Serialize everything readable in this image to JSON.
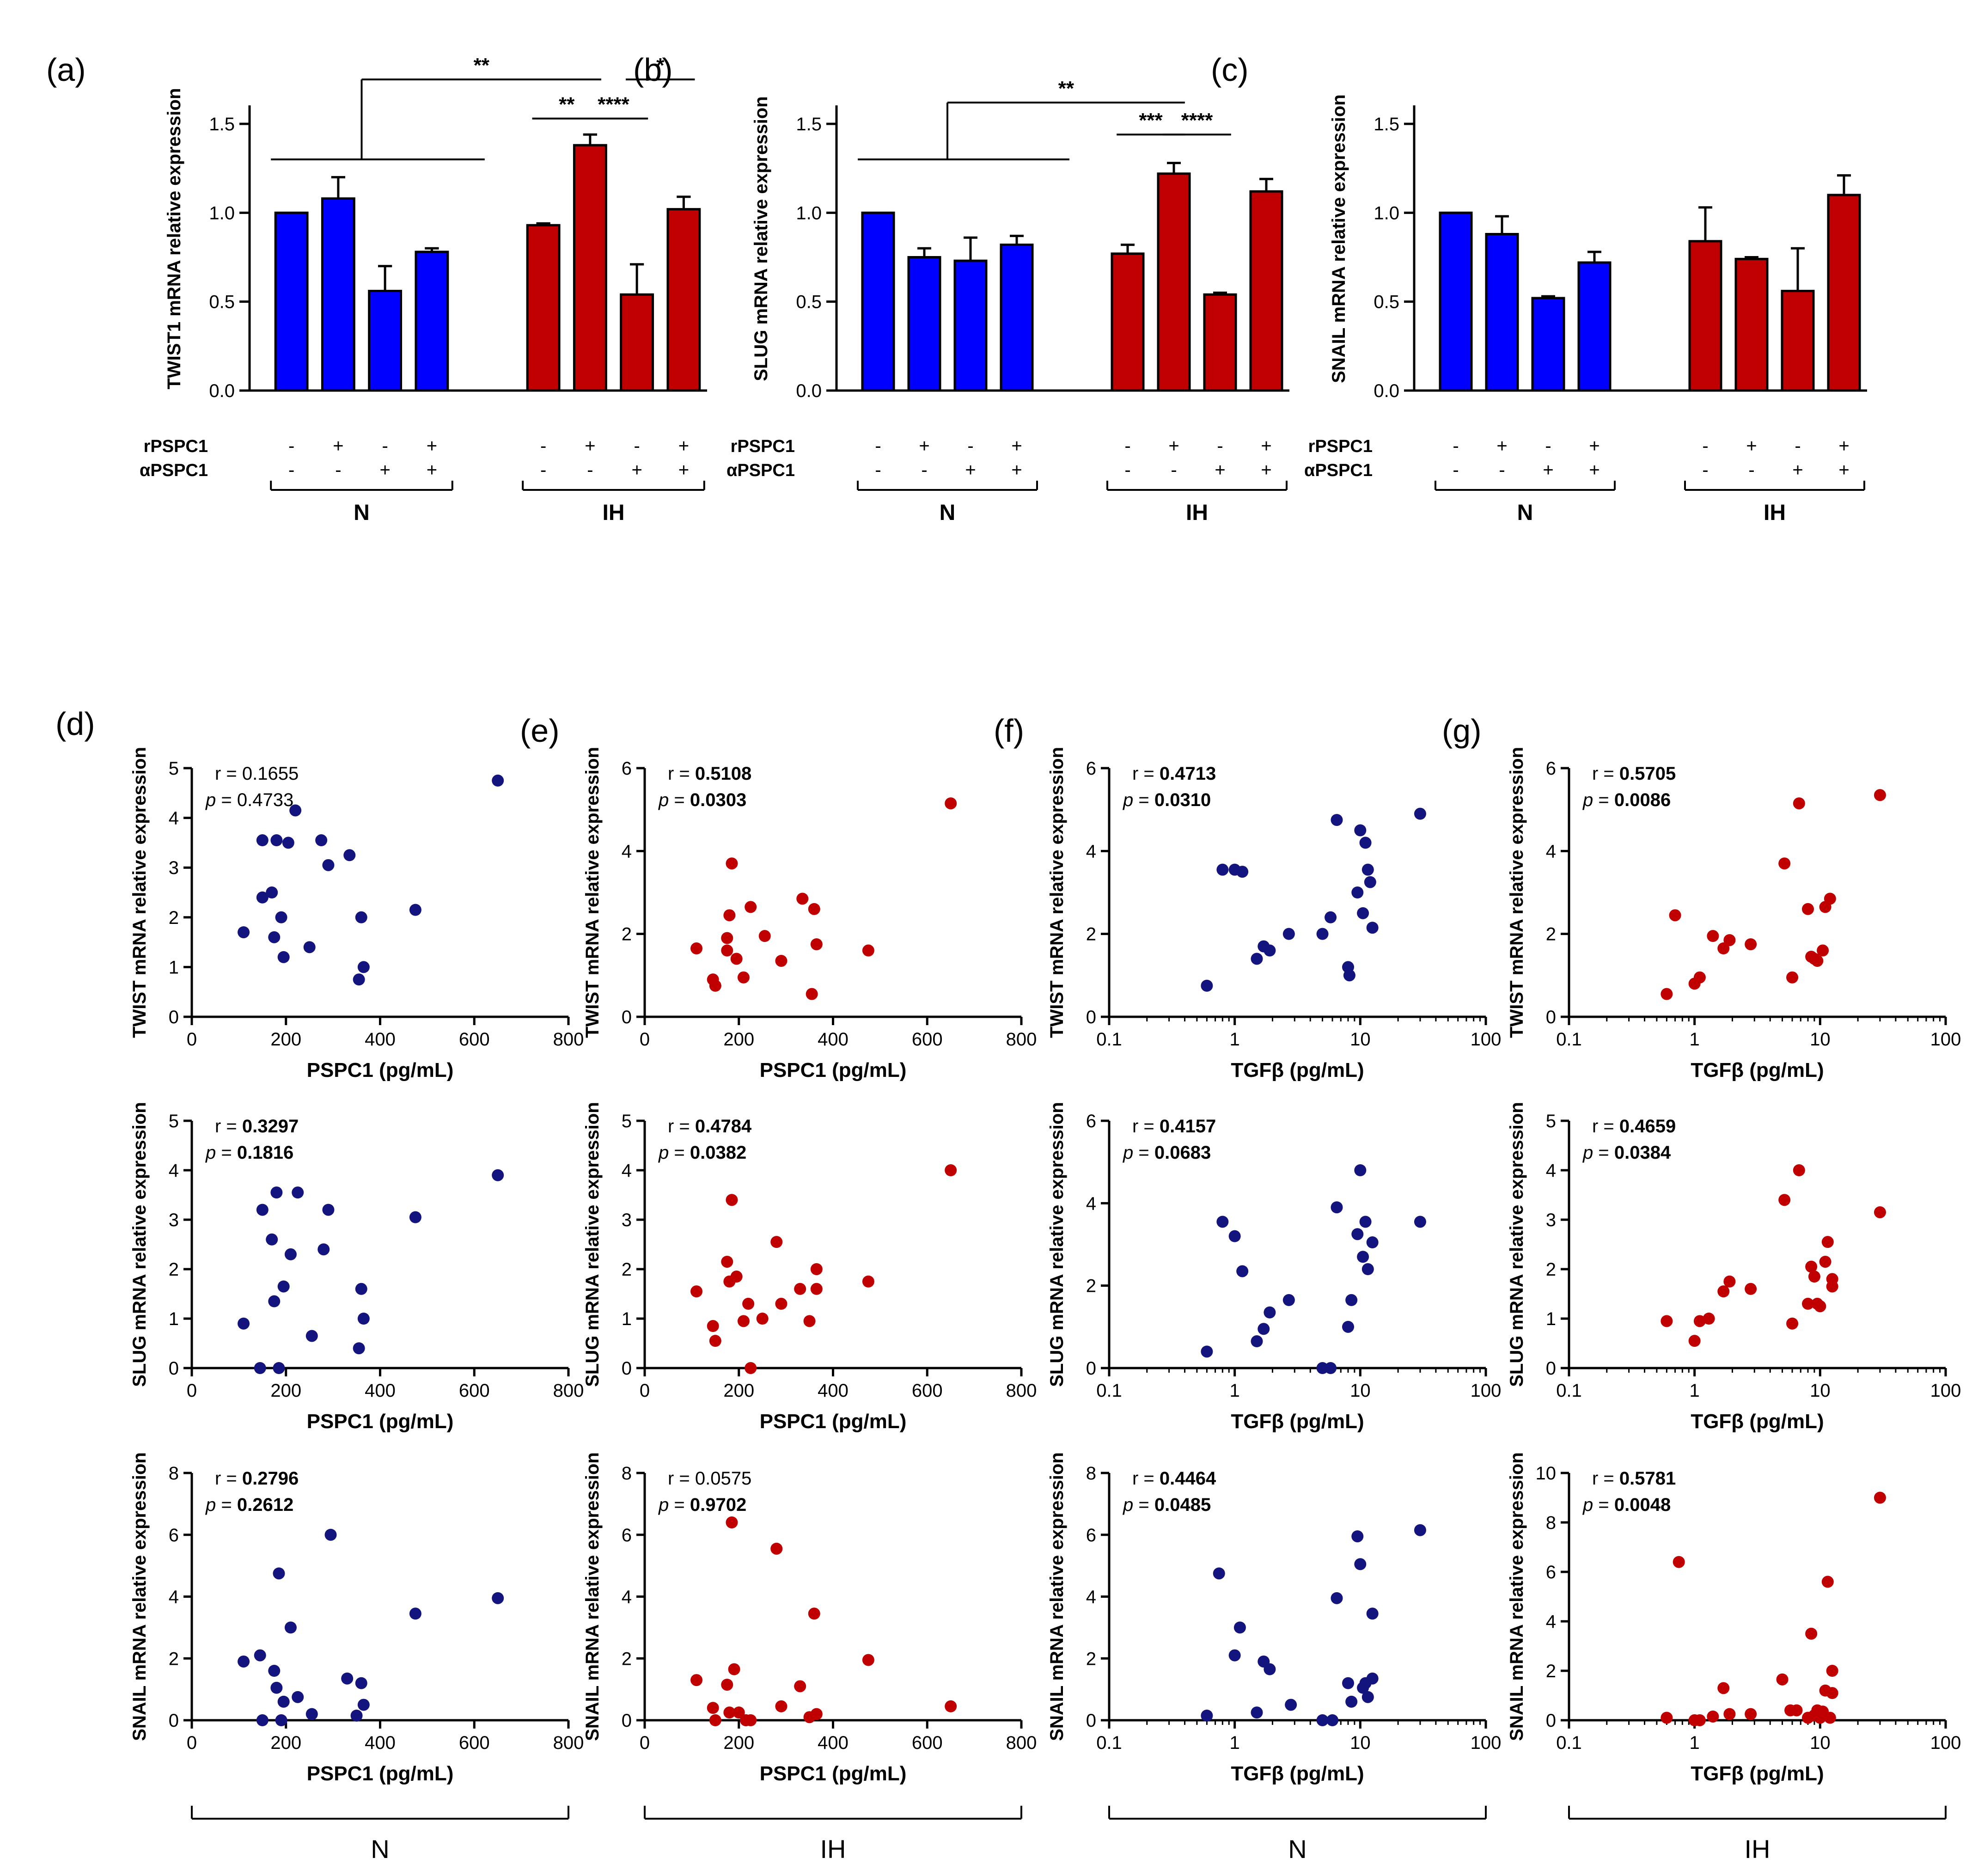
{
  "colors": {
    "N": "#0000ff",
    "IH": "#c00000",
    "N_dot": "#14147f",
    "IH_dot": "#c00000"
  },
  "bar_panels": [
    {
      "id": "a",
      "label": "(a)",
      "ylabel": "TWIST1 mRNA relative expression",
      "ylim": [
        0,
        1.5
      ],
      "yticks": [
        "0.0",
        "0.5",
        "1.0",
        "1.5"
      ],
      "row_labels": [
        "rPSPC1",
        "αPSPC1"
      ],
      "rPSPC1": [
        "-",
        "+",
        "-",
        "+",
        "-",
        "+",
        "-",
        "+"
      ],
      "aPSPC1": [
        "-",
        "-",
        "+",
        "+",
        "-",
        "-",
        "+",
        "+"
      ],
      "groups": [
        "N",
        "IH"
      ],
      "values": [
        1.0,
        1.08,
        0.56,
        0.78,
        0.93,
        1.38,
        0.54,
        1.02
      ],
      "errors": [
        0.0,
        0.12,
        0.14,
        0.02,
        0.01,
        0.06,
        0.17,
        0.07
      ],
      "significance": [
        {
          "label": "**",
          "type": "group",
          "from": 0,
          "to": 5,
          "level": 1.75
        },
        {
          "label": "**",
          "type": "pair",
          "from": 4,
          "to": 5,
          "level": 1.53
        },
        {
          "label": "****",
          "type": "pair",
          "from": 5,
          "to": 6,
          "level": 1.53
        },
        {
          "label": "*",
          "type": "pair",
          "from": 6,
          "to": 7,
          "level": 1.75
        }
      ]
    },
    {
      "id": "b",
      "label": "(b)",
      "ylabel": "SLUG mRNA relative expression",
      "ylim": [
        0,
        1.5
      ],
      "yticks": [
        "0.0",
        "0.5",
        "1.0",
        "1.5"
      ],
      "row_labels": [
        "rPSPC1",
        "αPSPC1"
      ],
      "rPSPC1": [
        "-",
        "+",
        "-",
        "+",
        "-",
        "+",
        "-",
        "+"
      ],
      "aPSPC1": [
        "-",
        "-",
        "+",
        "+",
        "-",
        "-",
        "+",
        "+"
      ],
      "groups": [
        "N",
        "IH"
      ],
      "values": [
        1.0,
        0.75,
        0.73,
        0.82,
        0.77,
        1.22,
        0.54,
        1.12
      ],
      "errors": [
        0.0,
        0.05,
        0.13,
        0.05,
        0.05,
        0.06,
        0.01,
        0.07
      ],
      "significance": [
        {
          "label": "**",
          "type": "group",
          "from": 0,
          "to": 5,
          "level": 1.62
        },
        {
          "label": "***",
          "type": "pair",
          "from": 4,
          "to": 5,
          "level": 1.44
        },
        {
          "label": "****",
          "type": "pair",
          "from": 5,
          "to": 6,
          "level": 1.44
        }
      ]
    },
    {
      "id": "c",
      "label": "(c)",
      "ylabel": "SNAIL mRNA relative expression",
      "ylim": [
        0,
        1.5
      ],
      "yticks": [
        "0.0",
        "0.5",
        "1.0",
        "1.5"
      ],
      "row_labels": [
        "rPSPC1",
        "αPSPC1"
      ],
      "rPSPC1": [
        "-",
        "+",
        "-",
        "+",
        "-",
        "+",
        "-",
        "+"
      ],
      "aPSPC1": [
        "-",
        "-",
        "+",
        "+",
        "-",
        "-",
        "+",
        "+"
      ],
      "groups": [
        "N",
        "IH"
      ],
      "values": [
        1.0,
        0.88,
        0.52,
        0.72,
        0.84,
        0.74,
        0.56,
        1.1
      ],
      "errors": [
        0.0,
        0.1,
        0.01,
        0.06,
        0.19,
        0.01,
        0.24,
        0.11
      ],
      "significance": []
    }
  ],
  "scatter_column_labels": [
    "(d)",
    "(e)",
    "(f)",
    "(g)"
  ],
  "bottom_groups": [
    "N",
    "IH",
    "N",
    "IH"
  ],
  "chart_data": [
    {
      "type": "scatter",
      "panel": "d-1",
      "group": "N",
      "xlabel": "PSPC1 (pg/mL)",
      "ylabel": "TWIST mRNA relative expression",
      "xscale": "linear",
      "xlim": [
        0,
        800
      ],
      "xticks": [
        "0",
        "200",
        "400",
        "600",
        "800"
      ],
      "ylim": [
        0,
        5
      ],
      "yticks": [
        "0",
        "1",
        "2",
        "3",
        "4",
        "5"
      ],
      "r": "0.1655",
      "p": "0.4733",
      "bold": false,
      "x": [
        110,
        150,
        150,
        170,
        175,
        180,
        190,
        195,
        205,
        220,
        250,
        275,
        290,
        335,
        355,
        360,
        365,
        475,
        650
      ],
      "y": [
        1.7,
        2.4,
        3.55,
        2.5,
        1.6,
        3.55,
        2.0,
        1.2,
        3.5,
        4.15,
        1.4,
        3.55,
        3.05,
        3.25,
        0.75,
        2.0,
        1.0,
        2.15,
        4.75
      ]
    },
    {
      "type": "scatter",
      "panel": "e-1",
      "group": "IH",
      "xlabel": "PSPC1 (pg/mL)",
      "ylabel": "TWIST mRNA relative expression",
      "xscale": "linear",
      "xlim": [
        0,
        800
      ],
      "xticks": [
        "0",
        "200",
        "400",
        "600",
        "800"
      ],
      "ylim": [
        0,
        6
      ],
      "yticks": [
        "0",
        "2",
        "4",
        "6"
      ],
      "r": "0.5108",
      "p": "0.0303",
      "bold": true,
      "x": [
        110,
        145,
        150,
        175,
        175,
        180,
        185,
        195,
        210,
        225,
        255,
        290,
        335,
        355,
        360,
        365,
        475,
        650
      ],
      "y": [
        1.65,
        0.9,
        0.75,
        1.9,
        1.6,
        2.45,
        3.7,
        1.4,
        0.95,
        2.65,
        1.95,
        1.35,
        2.85,
        0.55,
        2.6,
        1.75,
        1.6,
        5.15
      ]
    },
    {
      "type": "scatter",
      "panel": "f-1",
      "group": "N",
      "xlabel": "TGFβ (pg/mL)",
      "ylabel": "TWIST mRNA relative expression",
      "xscale": "log",
      "xlim": [
        0.1,
        100
      ],
      "xticks": [
        "0.1",
        "1",
        "10",
        "100"
      ],
      "ylim": [
        0,
        6
      ],
      "yticks": [
        "0",
        "2",
        "4",
        "6"
      ],
      "r": "0.4713",
      "p": "0.0310",
      "bold": true,
      "x": [
        0.6,
        0.8,
        1.0,
        1.15,
        1.5,
        1.7,
        1.9,
        2.7,
        5.0,
        5.8,
        6.5,
        8.0,
        8.2,
        9.5,
        10.0,
        10.5,
        11.0,
        11.5,
        12.0,
        12.5,
        30
      ],
      "y": [
        0.75,
        3.55,
        3.55,
        3.5,
        1.4,
        1.7,
        1.6,
        2.0,
        2.0,
        2.4,
        4.75,
        1.2,
        1.0,
        3.0,
        4.5,
        2.5,
        4.2,
        3.55,
        3.25,
        2.15,
        4.9
      ]
    },
    {
      "type": "scatter",
      "panel": "g-1",
      "group": "IH",
      "xlabel": "TGFβ (pg/mL)",
      "ylabel": "TWIST mRNA relative expression",
      "xscale": "log",
      "xlim": [
        0.1,
        100
      ],
      "xticks": [
        "0.1",
        "1",
        "10",
        "100"
      ],
      "ylim": [
        0,
        6
      ],
      "yticks": [
        "0",
        "2",
        "4",
        "6"
      ],
      "r": "0.5705",
      "p": "0.0086",
      "bold": true,
      "x": [
        0.6,
        0.7,
        1.0,
        1.1,
        1.4,
        1.7,
        1.9,
        2.8,
        5.2,
        6.0,
        6.8,
        8.0,
        8.5,
        9.0,
        9.5,
        10.5,
        11.0,
        12.0,
        30
      ],
      "y": [
        0.55,
        2.45,
        0.8,
        0.95,
        1.95,
        1.65,
        1.85,
        1.75,
        3.7,
        0.95,
        5.15,
        2.6,
        1.45,
        1.4,
        1.35,
        1.6,
        2.65,
        2.85,
        5.35
      ]
    },
    {
      "type": "scatter",
      "panel": "d-2",
      "group": "N",
      "xlabel": "PSPC1 (pg/mL)",
      "ylabel": "SLUG mRNA relative expression",
      "xscale": "linear",
      "xlim": [
        0,
        800
      ],
      "xticks": [
        "0",
        "200",
        "400",
        "600",
        "800"
      ],
      "ylim": [
        0,
        5
      ],
      "yticks": [
        "0",
        "1",
        "2",
        "3",
        "4",
        "5"
      ],
      "r": "0.3297",
      "p": "0.1816",
      "bold": true,
      "x": [
        110,
        145,
        150,
        170,
        175,
        180,
        185,
        195,
        210,
        225,
        255,
        280,
        290,
        355,
        360,
        365,
        475,
        650
      ],
      "y": [
        0.9,
        0,
        3.2,
        2.6,
        1.35,
        3.55,
        0,
        1.65,
        2.3,
        3.55,
        0.65,
        2.4,
        3.2,
        0.4,
        1.6,
        1.0,
        3.05,
        3.9
      ]
    },
    {
      "type": "scatter",
      "panel": "e-2",
      "group": "IH",
      "xlabel": "PSPC1 (pg/mL)",
      "ylabel": "SLUG mRNA relative expression",
      "xscale": "linear",
      "xlim": [
        0,
        800
      ],
      "xticks": [
        "0",
        "200",
        "400",
        "600",
        "800"
      ],
      "ylim": [
        0,
        5
      ],
      "yticks": [
        "0",
        "1",
        "2",
        "3",
        "4",
        "5"
      ],
      "r": "0.4784",
      "p": "0.0382",
      "bold": true,
      "x": [
        110,
        145,
        150,
        175,
        180,
        185,
        195,
        210,
        220,
        225,
        250,
        280,
        290,
        330,
        350,
        365,
        365,
        475,
        650
      ],
      "y": [
        1.55,
        0.85,
        0.55,
        2.15,
        1.75,
        3.4,
        1.85,
        0.95,
        1.3,
        0,
        1.0,
        2.55,
        1.3,
        1.6,
        0.95,
        2.0,
        1.6,
        1.75,
        4.0
      ]
    },
    {
      "type": "scatter",
      "panel": "f-2",
      "group": "N",
      "xlabel": "TGFβ (pg/mL)",
      "ylabel": "SLUG mRNA relative expression",
      "xscale": "log",
      "xlim": [
        0.1,
        100
      ],
      "xticks": [
        "0.1",
        "1",
        "10",
        "100"
      ],
      "ylim": [
        0,
        6
      ],
      "yticks": [
        "0",
        "2",
        "4",
        "6"
      ],
      "r": "0.4157",
      "p": "0.0683",
      "bold": true,
      "x": [
        0.6,
        0.8,
        1.0,
        1.15,
        1.5,
        1.7,
        1.9,
        2.7,
        5.0,
        5.8,
        6.5,
        8.0,
        8.5,
        9.5,
        10.0,
        10.5,
        11.0,
        11.5,
        12.5,
        30
      ],
      "y": [
        0.4,
        3.55,
        3.2,
        2.35,
        0.65,
        0.95,
        1.35,
        1.65,
        0,
        0,
        3.9,
        1.0,
        1.65,
        3.25,
        4.8,
        2.7,
        3.55,
        2.4,
        3.05,
        3.55
      ]
    },
    {
      "type": "scatter",
      "panel": "g-2",
      "group": "IH",
      "xlabel": "TGFβ (pg/mL)",
      "ylabel": "SLUG mRNA relative expression",
      "xscale": "log",
      "xlim": [
        0.1,
        100
      ],
      "xticks": [
        "0.1",
        "1",
        "10",
        "100"
      ],
      "ylim": [
        0,
        5
      ],
      "yticks": [
        "0",
        "1",
        "2",
        "3",
        "4",
        "5"
      ],
      "r": "0.4659",
      "p": "0.0384",
      "bold": true,
      "x": [
        0.6,
        1.0,
        1.1,
        1.3,
        1.7,
        1.9,
        2.8,
        5.2,
        6.0,
        6.8,
        8.0,
        8.5,
        9.0,
        9.5,
        10.0,
        11.0,
        11.5,
        12.5,
        12.5,
        30
      ],
      "y": [
        0.95,
        0.55,
        0.95,
        1.0,
        1.55,
        1.75,
        1.6,
        3.4,
        0.9,
        4.0,
        1.3,
        2.05,
        1.85,
        1.3,
        1.25,
        2.15,
        2.55,
        1.65,
        1.8,
        3.15
      ]
    },
    {
      "type": "scatter",
      "panel": "d-3",
      "group": "N",
      "xlabel": "PSPC1 (pg/mL)",
      "ylabel": "SNAIL mRNA relative expression",
      "xscale": "linear",
      "xlim": [
        0,
        800
      ],
      "xticks": [
        "0",
        "200",
        "400",
        "600",
        "800"
      ],
      "ylim": [
        0,
        8
      ],
      "yticks": [
        "0",
        "2",
        "4",
        "6",
        "8"
      ],
      "r": "0.2796",
      "p": "0.2612",
      "bold": true,
      "x": [
        110,
        145,
        150,
        175,
        180,
        185,
        190,
        195,
        210,
        225,
        255,
        295,
        330,
        350,
        360,
        365,
        475,
        650
      ],
      "y": [
        1.9,
        2.1,
        0,
        1.6,
        1.05,
        4.75,
        0,
        0.6,
        3.0,
        0.75,
        0.2,
        6.0,
        1.35,
        0.15,
        1.2,
        0.5,
        3.45,
        3.95
      ]
    },
    {
      "type": "scatter",
      "panel": "e-3",
      "group": "IH",
      "xlabel": "PSPC1 (pg/mL)",
      "ylabel": "SNAIL mRNA relative expression",
      "xscale": "linear",
      "xlim": [
        0,
        800
      ],
      "xticks": [
        "0",
        "200",
        "400",
        "600",
        "800"
      ],
      "ylim": [
        0,
        8
      ],
      "yticks": [
        "0",
        "2",
        "4",
        "6",
        "8"
      ],
      "r": "0.0575",
      "p": "0.9702",
      "bold": false,
      "p_bold": true,
      "x": [
        110,
        145,
        150,
        175,
        180,
        185,
        190,
        200,
        215,
        225,
        280,
        290,
        330,
        350,
        360,
        365,
        475,
        650
      ],
      "y": [
        1.3,
        0.4,
        0,
        1.15,
        0.25,
        6.4,
        1.65,
        0.25,
        0,
        0,
        5.55,
        0.45,
        1.1,
        0.1,
        3.45,
        0.2,
        1.95,
        0.45
      ]
    },
    {
      "type": "scatter",
      "panel": "f-3",
      "group": "N",
      "xlabel": "TGFβ (pg/mL)",
      "ylabel": "SNAIL mRNA relative expression",
      "xscale": "log",
      "xlim": [
        0.1,
        100
      ],
      "xticks": [
        "0.1",
        "1",
        "10",
        "100"
      ],
      "ylim": [
        0,
        8
      ],
      "yticks": [
        "0",
        "2",
        "4",
        "6",
        "8"
      ],
      "r": "0.4464",
      "p": "0.0485",
      "bold": true,
      "x": [
        0.6,
        0.75,
        1.0,
        1.1,
        1.5,
        1.7,
        1.9,
        2.8,
        5.0,
        6.0,
        6.5,
        8.0,
        8.5,
        9.5,
        10.0,
        10.5,
        11.0,
        11.5,
        12.5,
        12.5,
        30
      ],
      "y": [
        0.15,
        4.75,
        2.1,
        3.0,
        0.25,
        1.9,
        1.65,
        0.5,
        0,
        0,
        3.95,
        1.2,
        0.6,
        5.95,
        5.05,
        1.05,
        1.2,
        0.75,
        3.45,
        1.35,
        6.15
      ]
    },
    {
      "type": "scatter",
      "panel": "g-3",
      "group": "IH",
      "xlabel": "TGFβ (pg/mL)",
      "ylabel": "SNAIL mRNA relative expression",
      "xscale": "log",
      "xlim": [
        0.1,
        100
      ],
      "xticks": [
        "0.1",
        "1",
        "10",
        "100"
      ],
      "ylim": [
        0,
        10
      ],
      "yticks": [
        "0",
        "2",
        "4",
        "6",
        "8",
        "10"
      ],
      "r": "0.5781",
      "p": "0.0048",
      "bold": true,
      "x": [
        0.6,
        0.75,
        1.0,
        1.1,
        1.4,
        1.7,
        1.9,
        2.8,
        5.0,
        5.8,
        6.5,
        8.0,
        8.5,
        9.0,
        9.5,
        10.0,
        10.5,
        11.0,
        11.5,
        12.0,
        12.5,
        12.5,
        30
      ],
      "y": [
        0.1,
        6.4,
        0,
        0,
        0.15,
        1.3,
        0.25,
        0.25,
        1.65,
        0.4,
        0.4,
        0.1,
        3.5,
        0.2,
        0.4,
        0.1,
        0.35,
        1.2,
        5.6,
        0.1,
        1.1,
        2.0,
        9.0
      ]
    }
  ]
}
